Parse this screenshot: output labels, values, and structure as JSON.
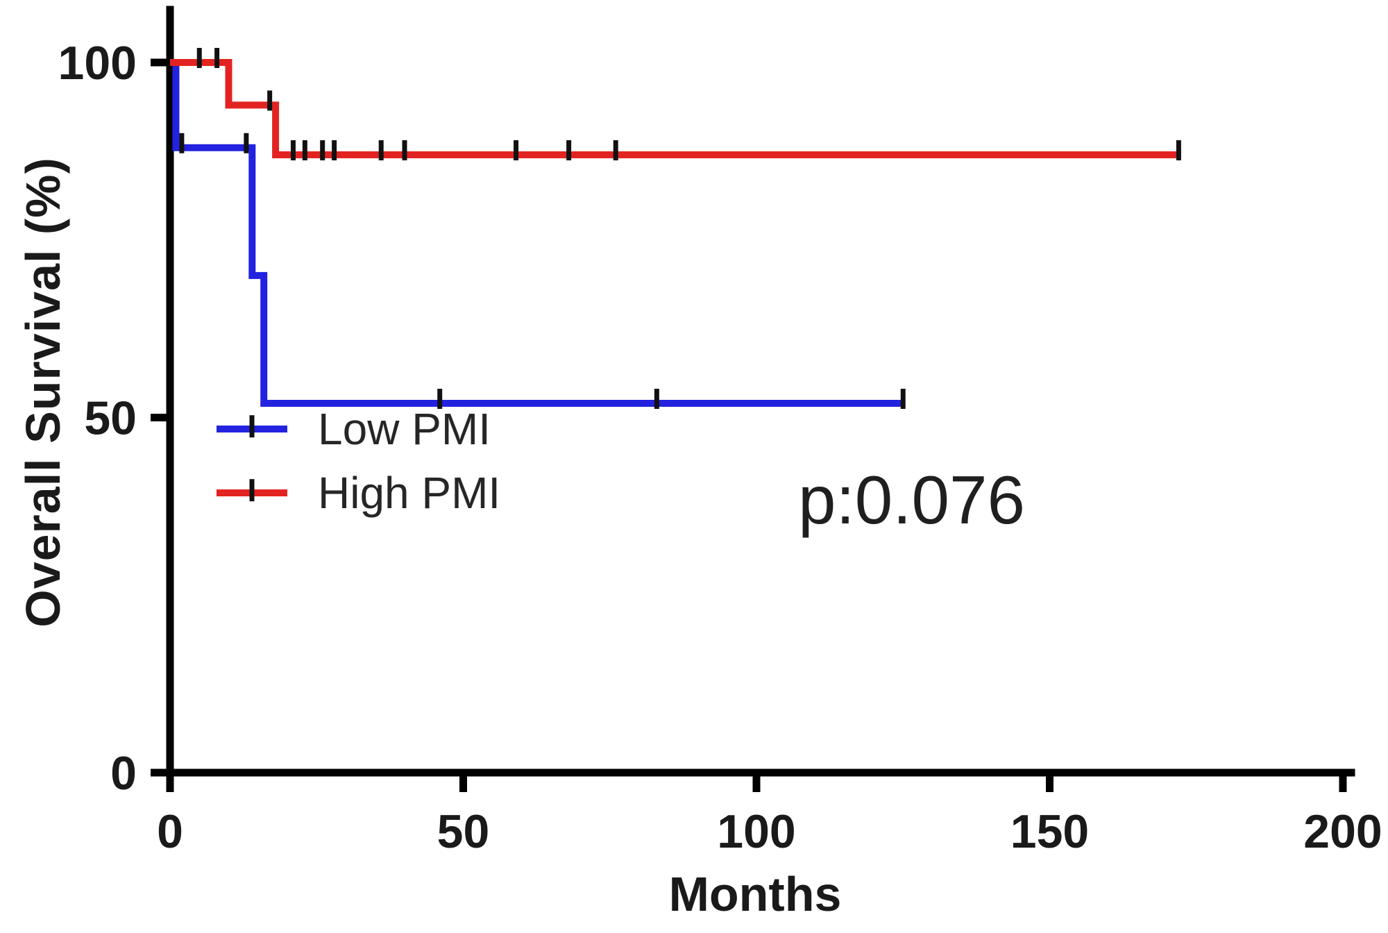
{
  "chart_data": {
    "type": "line",
    "subtype": "kaplan-meier-step-survival",
    "title": "",
    "xlabel": "Months",
    "ylabel": "Overall Survival (%)",
    "xlim": [
      0,
      200
    ],
    "ylim": [
      0,
      100
    ],
    "x_ticks": [
      0,
      50,
      100,
      150,
      200
    ],
    "y_ticks": [
      0,
      50,
      100
    ],
    "grid": false,
    "legend_position": "inside-lower-left",
    "annotation": "p:0.076",
    "axis_color": "#000000",
    "text_color": "#1a1a1a",
    "censor_color": "#111111",
    "series": [
      {
        "name": "Low PMI",
        "color": "#2222DF",
        "steps": [
          [
            0,
            100
          ],
          [
            1,
            100
          ],
          [
            1,
            88
          ],
          [
            14,
            88
          ],
          [
            14,
            70
          ],
          [
            16,
            70
          ],
          [
            16,
            52
          ],
          [
            125,
            52
          ]
        ],
        "censor_marks": [
          [
            2,
            88
          ],
          [
            13,
            88
          ],
          [
            46,
            52
          ],
          [
            83,
            52
          ],
          [
            125,
            52
          ]
        ]
      },
      {
        "name": "High PMI",
        "color": "#E32321",
        "steps": [
          [
            0,
            100
          ],
          [
            10,
            100
          ],
          [
            10,
            94
          ],
          [
            18,
            94
          ],
          [
            18,
            87
          ],
          [
            172,
            87
          ]
        ],
        "censor_marks": [
          [
            5,
            100
          ],
          [
            8,
            100
          ],
          [
            17,
            94
          ],
          [
            21,
            87
          ],
          [
            23,
            87
          ],
          [
            26,
            87
          ],
          [
            28,
            87
          ],
          [
            36,
            87
          ],
          [
            40,
            87
          ],
          [
            59,
            87
          ],
          [
            68,
            87
          ],
          [
            76,
            87
          ],
          [
            172,
            87
          ]
        ]
      }
    ]
  }
}
